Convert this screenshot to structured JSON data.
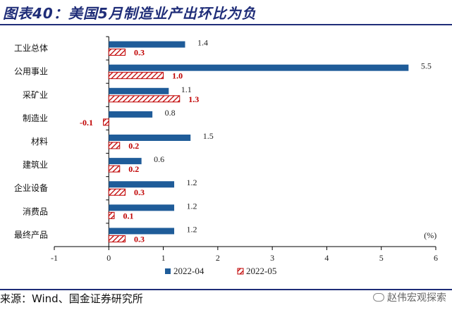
{
  "header": {
    "title": "图表40：美国5月制造业产出环比为负"
  },
  "footer": {
    "source": "来源：Wind、国金证券研究所",
    "watermark": "赵伟宏观探索"
  },
  "colors": {
    "series_a": "#1f5c99",
    "series_b": "#c00000",
    "title": "#1f2d78"
  },
  "chart_data": {
    "type": "bar",
    "orientation": "horizontal",
    "categories": [
      "工业总体",
      "公用事业",
      "采矿业",
      "制造业",
      "材料",
      "建筑业",
      "企业设备",
      "消费品",
      "最终产品"
    ],
    "series": [
      {
        "name": "2022-04",
        "values": [
          1.4,
          5.5,
          1.1,
          0.8,
          1.5,
          0.6,
          1.2,
          1.2,
          1.2
        ],
        "style": "solid"
      },
      {
        "name": "2022-05",
        "values": [
          0.3,
          1.0,
          1.3,
          -0.1,
          0.2,
          0.2,
          0.3,
          0.1,
          0.3
        ],
        "style": "hatched"
      }
    ],
    "value_labels": {
      "2022-04": [
        "1.4",
        "5.5",
        "1.1",
        "0.8",
        "1.5",
        "0.6",
        "1.2",
        "1.2",
        "1.2"
      ],
      "2022-05": [
        "0.3",
        "1.0",
        "1.3",
        "-0.1",
        "0.2",
        "0.2",
        "0.3",
        "0.1",
        "0.3"
      ]
    },
    "xlim": [
      -1,
      6
    ],
    "xticks": [
      -1,
      0,
      1,
      2,
      3,
      4,
      5,
      6
    ],
    "unit_label": "(%)",
    "legend_position": "bottom",
    "grid": false
  }
}
